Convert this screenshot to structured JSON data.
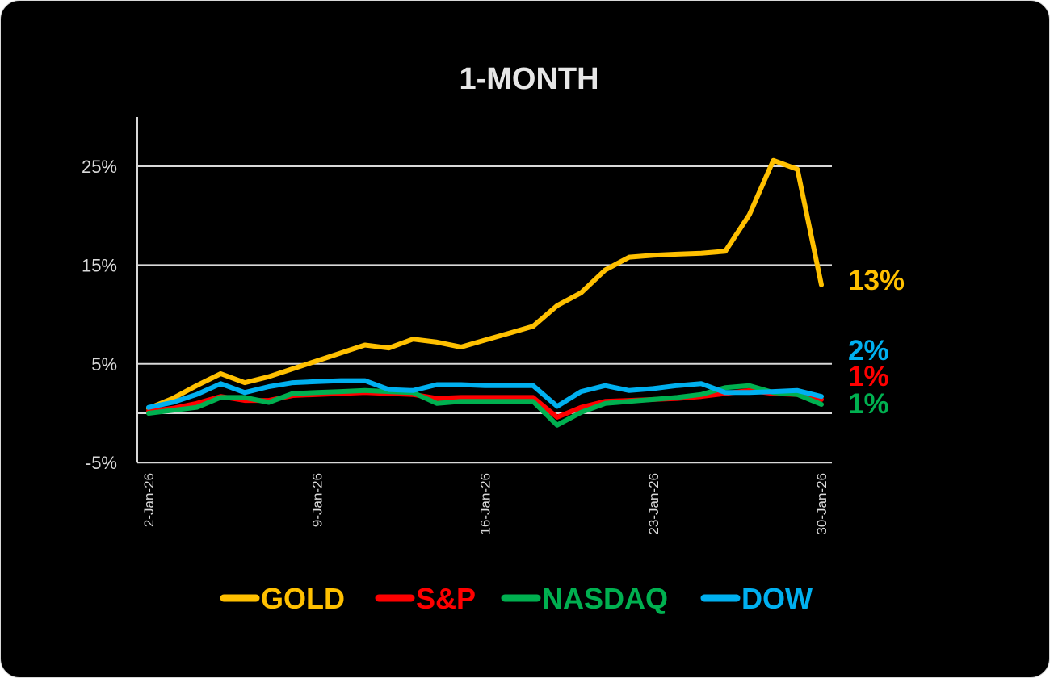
{
  "chart_data": {
    "type": "line",
    "title": "1-MONTH",
    "xlabel": "",
    "ylabel": "",
    "ylim": [
      -5,
      30
    ],
    "yticks": [
      -5,
      5,
      15,
      25
    ],
    "ytick_labels": [
      "-5%",
      "5%",
      "15%",
      "25%"
    ],
    "grid": true,
    "x_count": 29,
    "xtick_labels": [
      {
        "index": 0,
        "label": "2-Jan-26"
      },
      {
        "index": 7,
        "label": "9-Jan-26"
      },
      {
        "index": 14,
        "label": "16-Jan-26"
      },
      {
        "index": 21,
        "label": "23-Jan-26"
      },
      {
        "index": 28,
        "label": "30-Jan-26"
      }
    ],
    "legend_position": "bottom",
    "series": [
      {
        "name": "GOLD",
        "color": "#FFC000",
        "end_label": "13%",
        "values": [
          0.5,
          1.5,
          2.8,
          4.0,
          3.1,
          3.7,
          4.5,
          5.3,
          6.1,
          6.9,
          6.6,
          7.5,
          7.2,
          6.7,
          7.4,
          8.1,
          8.8,
          10.9,
          12.2,
          14.5,
          15.8,
          16.0,
          16.1,
          16.2,
          16.4,
          20.1,
          25.6,
          24.7,
          13.0
        ]
      },
      {
        "name": "S&P",
        "color": "#FF0000",
        "end_label": "1%",
        "values": [
          0.2,
          0.5,
          1.0,
          1.7,
          1.3,
          1.3,
          1.8,
          1.9,
          2.0,
          2.1,
          2.0,
          1.9,
          1.5,
          1.6,
          1.6,
          1.6,
          1.6,
          -0.4,
          0.6,
          1.2,
          1.3,
          1.4,
          1.5,
          1.7,
          2.0,
          2.3,
          2.0,
          1.9,
          1.4
        ]
      },
      {
        "name": "NASDAQ",
        "color": "#00B050",
        "end_label": "1%",
        "values": [
          0.0,
          0.3,
          0.6,
          1.6,
          1.6,
          1.1,
          2.0,
          2.1,
          2.2,
          2.3,
          2.2,
          2.1,
          1.0,
          1.2,
          1.2,
          1.2,
          1.2,
          -1.2,
          0.1,
          1.0,
          1.2,
          1.4,
          1.6,
          1.9,
          2.6,
          2.8,
          2.1,
          1.9,
          0.9
        ]
      },
      {
        "name": "DOW",
        "color": "#00B0F0",
        "end_label": "2%",
        "values": [
          0.6,
          1.1,
          1.9,
          3.0,
          2.1,
          2.7,
          3.1,
          3.2,
          3.3,
          3.3,
          2.4,
          2.3,
          2.9,
          2.9,
          2.8,
          2.8,
          2.8,
          0.7,
          2.2,
          2.8,
          2.3,
          2.5,
          2.8,
          3.0,
          2.1,
          2.1,
          2.2,
          2.3,
          1.7
        ]
      }
    ]
  }
}
